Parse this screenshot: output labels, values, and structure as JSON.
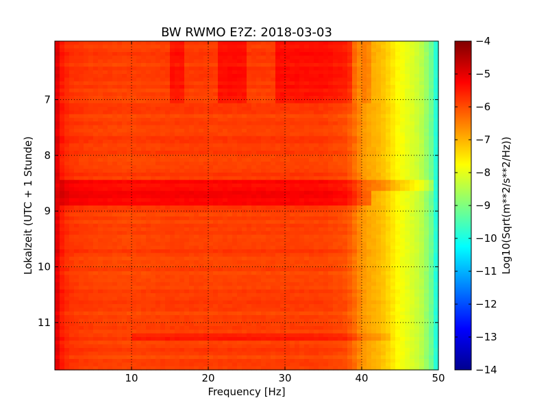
{
  "chart_data": {
    "type": "heatmap",
    "title": "BW RWMO E?Z: 2018-03-03",
    "xlabel": "Frequency [Hz]",
    "ylabel": "Lokalzeit (UTC + 1 Stunde)",
    "xlim": [
      0,
      50
    ],
    "ylim": [
      5.95,
      11.85
    ],
    "y_inverted": true,
    "x_ticks": [
      10,
      20,
      30,
      40,
      50
    ],
    "y_ticks": [
      7,
      8,
      9,
      10,
      11
    ],
    "grid": true,
    "colormap": "jet",
    "colorbar": {
      "label": "Log10(Sqrt(m**2/s**2/Hz))",
      "range": [
        -14,
        -4
      ],
      "ticks": [
        -4,
        -5,
        -6,
        -7,
        -8,
        -9,
        -10,
        -11,
        -12,
        -13,
        -14
      ]
    },
    "baseline_spectrum": {
      "frequency_hz": [
        0,
        0.3,
        0.6,
        1,
        2,
        5,
        10,
        15,
        20,
        25,
        30,
        35,
        38,
        39,
        40,
        41,
        42,
        43,
        44,
        45,
        46,
        47,
        48,
        49,
        49.5,
        50
      ],
      "value": [
        -5.6,
        -5.0,
        -5.2,
        -5.55,
        -5.75,
        -5.85,
        -5.9,
        -5.85,
        -5.85,
        -5.85,
        -5.85,
        -5.85,
        -6.0,
        -6.3,
        -6.7,
        -6.9,
        -7.0,
        -7.2,
        -7.5,
        -7.8,
        -8.0,
        -8.2,
        -8.5,
        -9.1,
        -9.6,
        -10.3
      ]
    },
    "features": [
      {
        "t_start": 5.95,
        "t_end": 7.05,
        "f_start": 15,
        "f_end": 17,
        "delta": 0.4
      },
      {
        "t_start": 5.95,
        "t_end": 7.05,
        "f_start": 21,
        "f_end": 25,
        "delta": 0.45
      },
      {
        "t_start": 5.95,
        "t_end": 7.05,
        "f_start": 28.5,
        "f_end": 38.5,
        "delta": 0.45
      },
      {
        "t_start": 5.95,
        "t_end": 7.05,
        "f_start": 40,
        "f_end": 41.5,
        "delta": 0.3
      },
      {
        "t_start": 8.45,
        "t_end": 8.65,
        "f_start": 0.5,
        "f_end": 49.5,
        "delta": 0.55
      },
      {
        "t_start": 8.65,
        "t_end": 8.9,
        "f_start": 0.5,
        "f_end": 41,
        "delta": 0.6
      },
      {
        "t_start": 11.2,
        "t_end": 11.35,
        "f_start": 10,
        "f_end": 44,
        "delta": 0.3
      }
    ]
  }
}
